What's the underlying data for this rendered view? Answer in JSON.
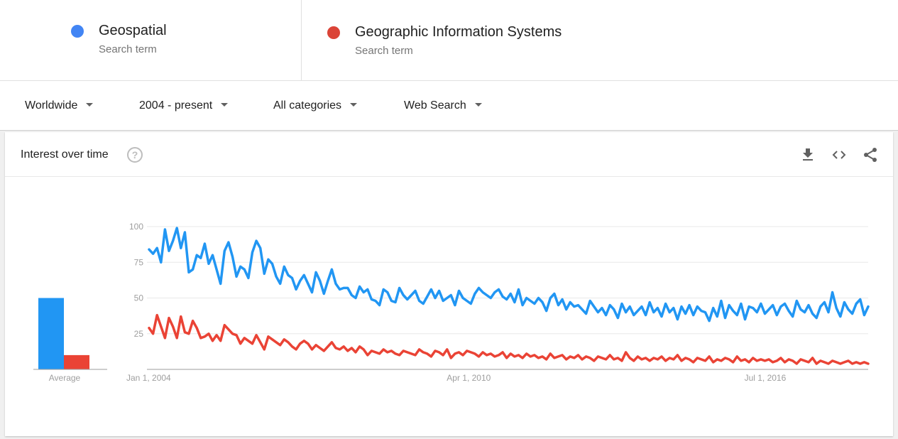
{
  "terms": [
    {
      "name": "Geospatial",
      "sub": "Search term",
      "color": "#4285f4"
    },
    {
      "name": "Geographic Information Systems",
      "sub": "Search term",
      "color": "#db4437"
    }
  ],
  "filters": {
    "region": "Worldwide",
    "time": "2004 - present",
    "category": "All categories",
    "property": "Web Search"
  },
  "card": {
    "title": "Interest over time",
    "help_symbol": "?",
    "actions": [
      "download-icon",
      "embed-icon",
      "share-icon"
    ]
  },
  "chart_data": {
    "type": "line",
    "title": "Interest over time",
    "x_ticks": [
      "Jan 1, 2004",
      "Apr 1, 2010",
      "Jul 1, 2016"
    ],
    "y_ticks": [
      25,
      50,
      75,
      100
    ],
    "ylim": [
      0,
      100
    ],
    "xlim": [
      2004.0,
      2019.1
    ],
    "grid": true,
    "x_sampling": "monthly from 2004-01, 182 points",
    "series": [
      {
        "name": "Geospatial",
        "color": "#2196f3",
        "values": [
          84,
          81,
          85,
          75,
          98,
          83,
          90,
          99,
          85,
          96,
          68,
          70,
          80,
          78,
          88,
          74,
          80,
          70,
          60,
          83,
          89,
          79,
          65,
          72,
          70,
          64,
          82,
          90,
          85,
          67,
          77,
          74,
          65,
          60,
          72,
          66,
          64,
          56,
          62,
          66,
          60,
          54,
          68,
          62,
          53,
          62,
          70,
          60,
          56,
          57,
          57,
          52,
          50,
          58,
          54,
          56,
          49,
          48,
          45,
          56,
          54,
          48,
          47,
          57,
          52,
          49,
          52,
          55,
          48,
          46,
          51,
          56,
          50,
          55,
          48,
          50,
          52,
          45,
          55,
          50,
          48,
          46,
          53,
          57,
          54,
          52,
          50,
          54,
          56,
          51,
          49,
          53,
          47,
          56,
          45,
          50,
          48,
          46,
          50,
          47,
          41,
          50,
          53,
          45,
          49,
          42,
          47,
          44,
          45,
          42,
          39,
          48,
          44,
          40,
          43,
          38,
          45,
          42,
          36,
          46,
          40,
          44,
          38,
          41,
          44,
          38,
          47,
          40,
          43,
          37,
          46,
          40,
          43,
          35,
          44,
          39,
          45,
          38,
          44,
          41,
          40,
          34,
          43,
          37,
          48,
          36,
          45,
          41,
          38,
          46,
          35,
          44,
          43,
          40,
          46,
          39,
          42,
          45,
          38,
          44,
          46,
          41,
          37,
          48,
          42,
          40,
          45,
          39,
          36,
          44,
          47,
          40,
          54,
          43,
          37,
          47,
          42,
          39,
          46,
          49,
          38,
          44
        ]
      },
      {
        "name": "Geographic Information Systems",
        "color": "#ea4335",
        "values": [
          29,
          25,
          38,
          30,
          22,
          36,
          30,
          22,
          37,
          26,
          25,
          34,
          29,
          22,
          23,
          25,
          20,
          24,
          20,
          31,
          28,
          25,
          24,
          18,
          22,
          20,
          18,
          24,
          19,
          14,
          23,
          21,
          19,
          17,
          21,
          19,
          16,
          14,
          18,
          20,
          18,
          14,
          17,
          15,
          13,
          16,
          19,
          15,
          14,
          16,
          13,
          15,
          12,
          16,
          14,
          10,
          13,
          12,
          11,
          14,
          12,
          13,
          11,
          10,
          13,
          12,
          11,
          10,
          14,
          12,
          11,
          9,
          13,
          12,
          10,
          14,
          8,
          11,
          12,
          10,
          13,
          12,
          11,
          9,
          12,
          10,
          11,
          9,
          10,
          12,
          8,
          11,
          9,
          10,
          8,
          11,
          9,
          10,
          8,
          9,
          7,
          11,
          8,
          9,
          10,
          7,
          9,
          8,
          10,
          7,
          9,
          8,
          6,
          9,
          8,
          7,
          10,
          7,
          8,
          6,
          12,
          8,
          6,
          9,
          7,
          8,
          6,
          8,
          7,
          9,
          6,
          8,
          7,
          10,
          6,
          8,
          7,
          5,
          8,
          7,
          6,
          9,
          5,
          7,
          6,
          8,
          7,
          5,
          9,
          6,
          7,
          5,
          8,
          6,
          7,
          6,
          7,
          5,
          6,
          8,
          5,
          7,
          6,
          4,
          7,
          6,
          5,
          8,
          4,
          6,
          5,
          4,
          6,
          5,
          4,
          5,
          6,
          4,
          5,
          4,
          5,
          4
        ]
      }
    ],
    "average": {
      "label": "Average",
      "values": [
        {
          "name": "Geospatial",
          "value": 50,
          "color": "#2196f3"
        },
        {
          "name": "Geographic Information Systems",
          "value": 10,
          "color": "#ea4335"
        }
      ]
    }
  }
}
